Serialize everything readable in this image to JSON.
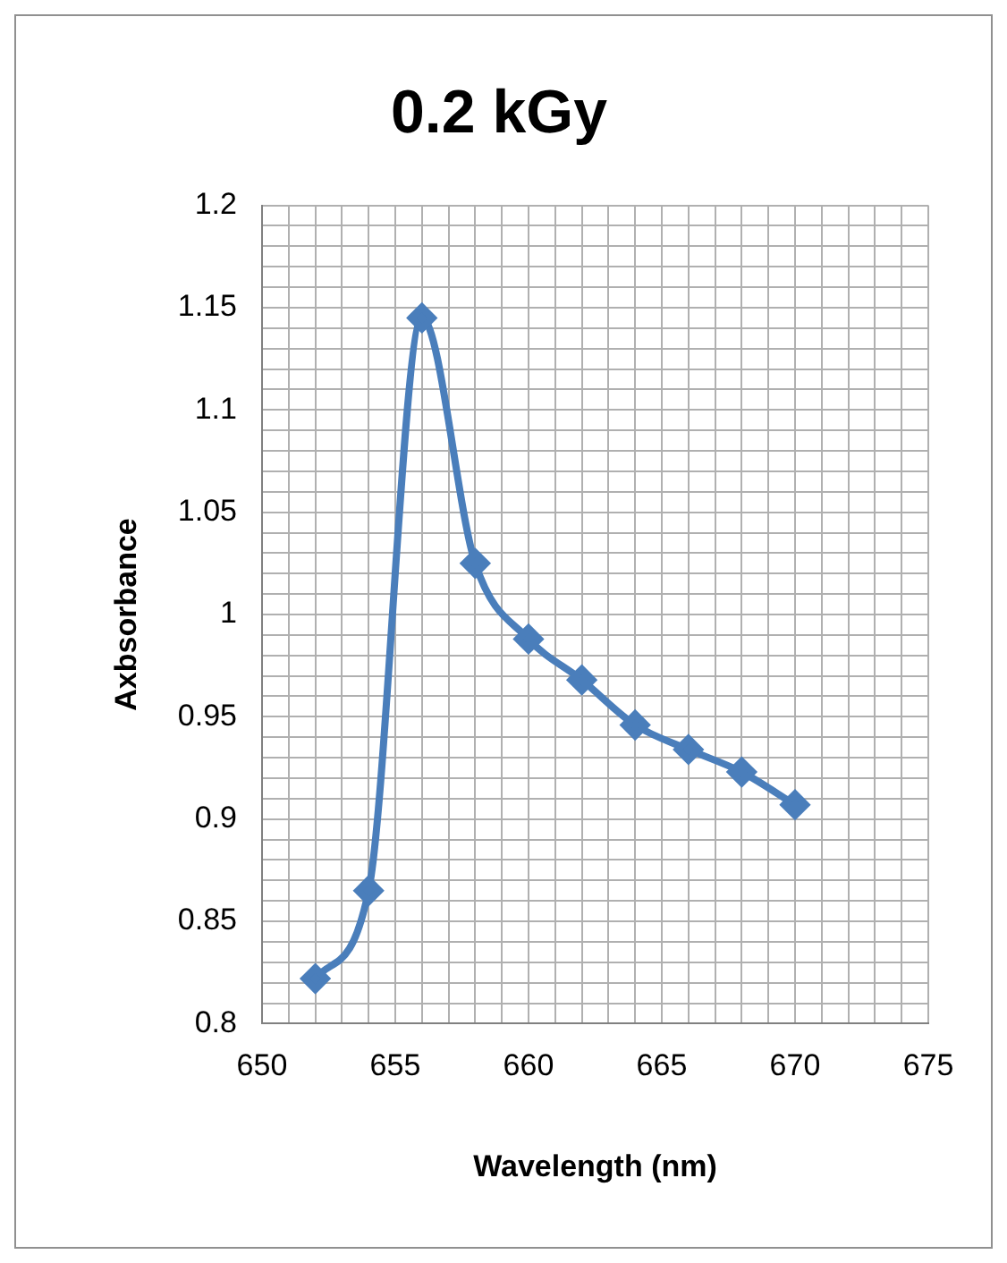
{
  "chart_data": {
    "type": "line",
    "title": "0.2 kGy",
    "xlabel": "Wavelength (nm)",
    "ylabel": "Axbsorbance",
    "x": [
      652,
      654,
      656,
      658,
      660,
      662,
      664,
      666,
      668,
      670
    ],
    "series": [
      {
        "color": "#4a7ebb",
        "values": [
          0.822,
          0.865,
          1.145,
          1.025,
          0.988,
          0.968,
          0.946,
          0.934,
          0.923,
          0.907
        ]
      }
    ],
    "xlim": [
      650,
      675
    ],
    "xticks": [
      650,
      {
        "value": 651,
        "label": null
      },
      {
        "value": 652,
        "label": null
      },
      {
        "value": 653,
        "label": null
      },
      {
        "value": 654,
        "label": null
      },
      655,
      {
        "value": 656,
        "label": null
      },
      {
        "value": 657,
        "label": null
      },
      {
        "value": 658,
        "label": null
      },
      {
        "value": 659,
        "label": null
      },
      660,
      {
        "value": 661,
        "label": null
      },
      {
        "value": 662,
        "label": null
      },
      {
        "value": 663,
        "label": null
      },
      {
        "value": 664,
        "label": null
      },
      665,
      {
        "value": 666,
        "label": null
      },
      {
        "value": 667,
        "label": null
      },
      {
        "value": 668,
        "label": null
      },
      {
        "value": 669,
        "label": null
      },
      670,
      {
        "value": 671,
        "label": null
      },
      {
        "value": 672,
        "label": null
      },
      {
        "value": 673,
        "label": null
      },
      {
        "value": 674,
        "label": null
      },
      675
    ],
    "ylim": [
      0.8,
      1.2
    ],
    "yticks": [
      0.8,
      {
        "value": 0.81,
        "label": null
      },
      {
        "value": 0.82,
        "label": null
      },
      {
        "value": 0.83,
        "label": null
      },
      {
        "value": 0.84,
        "label": null
      },
      0.85,
      {
        "value": 0.86,
        "label": null
      },
      {
        "value": 0.87,
        "label": null
      },
      {
        "value": 0.88,
        "label": null
      },
      {
        "value": 0.89,
        "label": null
      },
      0.9,
      {
        "value": 0.91,
        "label": null
      },
      {
        "value": 0.92,
        "label": null
      },
      {
        "value": 0.93,
        "label": null
      },
      {
        "value": 0.94,
        "label": null
      },
      0.95,
      {
        "value": 0.96,
        "label": null
      },
      {
        "value": 0.97,
        "label": null
      },
      {
        "value": 0.98,
        "label": null
      },
      {
        "value": 0.99,
        "label": null
      },
      1,
      {
        "value": 1.01,
        "label": null
      },
      {
        "value": 1.02,
        "label": null
      },
      {
        "value": 1.03,
        "label": null
      },
      {
        "value": 1.04,
        "label": null
      },
      1.05,
      {
        "value": 1.06,
        "label": null
      },
      {
        "value": 1.07,
        "label": null
      },
      {
        "value": 1.08,
        "label": null
      },
      {
        "value": 1.09,
        "label": null
      },
      1.1,
      {
        "value": 1.11,
        "label": null
      },
      {
        "value": 1.12,
        "label": null
      },
      {
        "value": 1.13,
        "label": null
      },
      {
        "value": 1.14,
        "label": null
      },
      1.15,
      {
        "value": 1.16,
        "label": null
      },
      {
        "value": 1.17,
        "label": null
      },
      {
        "value": 1.18,
        "label": null
      },
      {
        "value": 1.19,
        "label": null
      },
      1.2
    ],
    "grid": true,
    "legend": false,
    "marker": "diamond",
    "line_style": "solid"
  }
}
